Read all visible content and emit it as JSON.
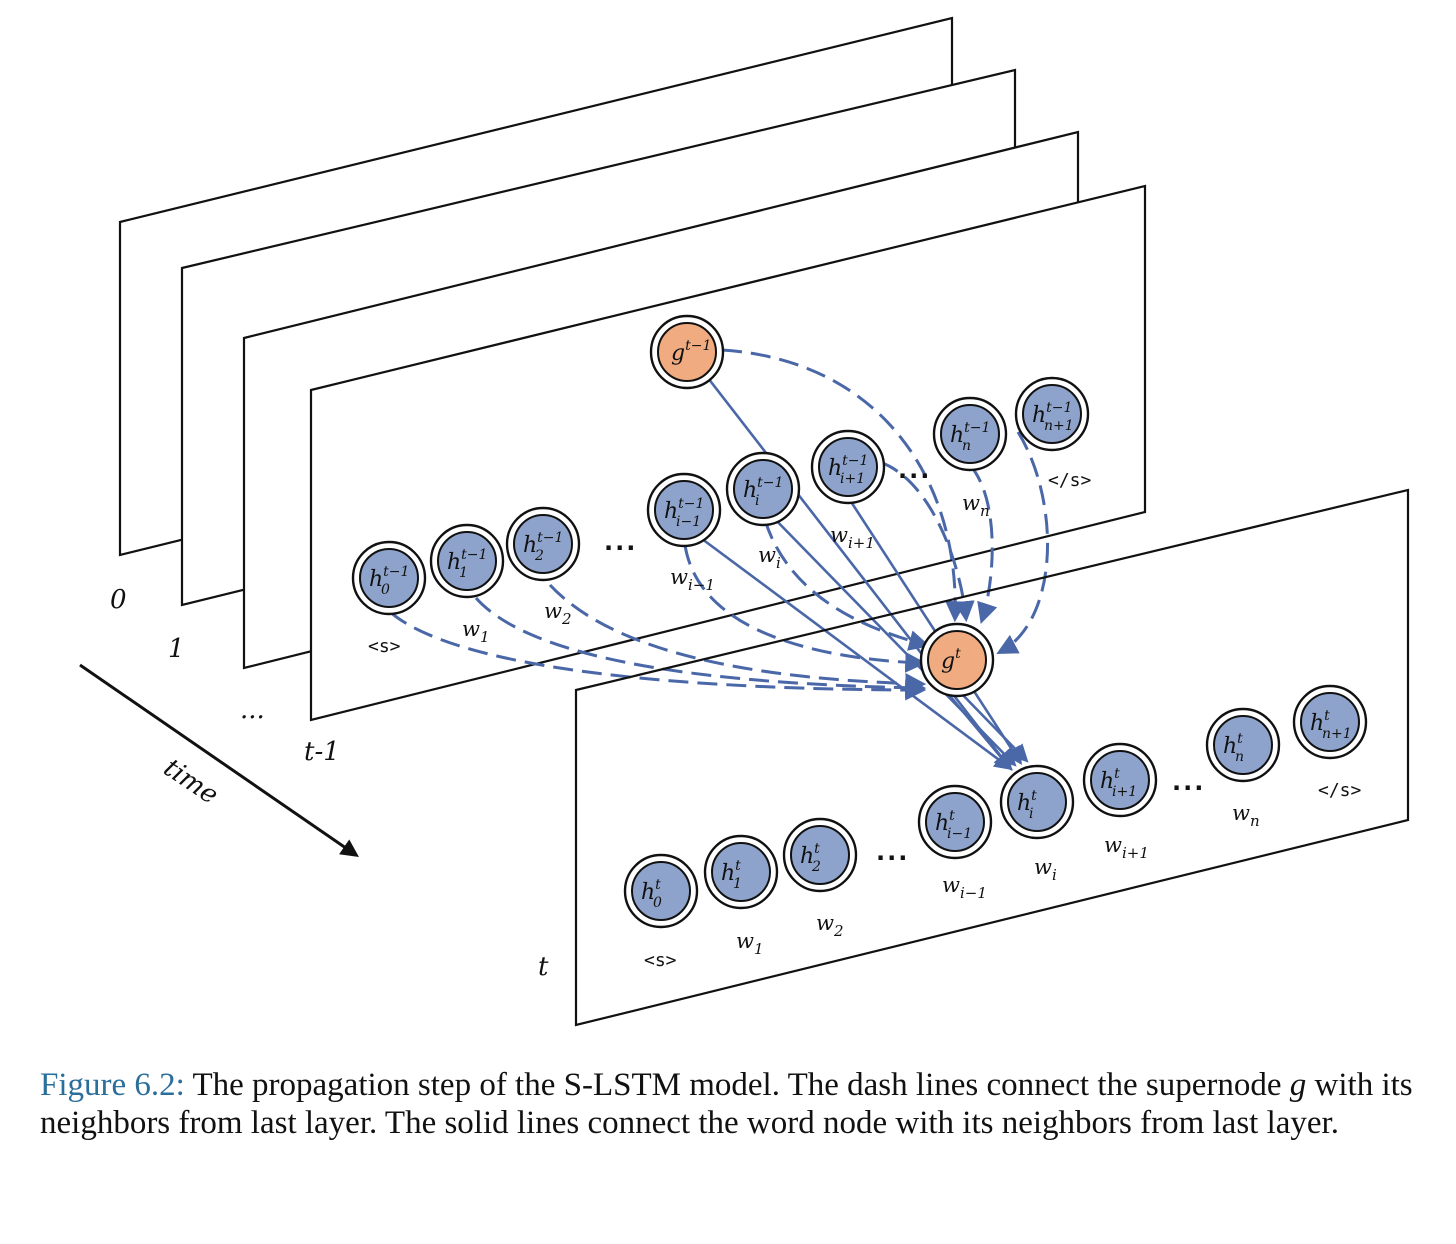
{
  "diagram": {
    "time_axis_label": "time",
    "layer_labels": [
      "0",
      "1",
      "...",
      "t-1",
      "t"
    ],
    "dots": "...",
    "prev_layer": {
      "supernode": {
        "base": "g",
        "sup": "t−1"
      },
      "nodes": [
        {
          "id": "p0",
          "base": "h",
          "sub": "0",
          "sup": "t−1",
          "word": "<s>",
          "word_kind": "tag"
        },
        {
          "id": "p1",
          "base": "h",
          "sub": "1",
          "sup": "t−1",
          "word_base": "w",
          "word_sub": "1"
        },
        {
          "id": "p2",
          "base": "h",
          "sub": "2",
          "sup": "t−1",
          "word_base": "w",
          "word_sub": "2"
        },
        {
          "id": "pim1",
          "base": "h",
          "sub": "i−1",
          "sup": "t−1",
          "word_base": "w",
          "word_sub": "i−1"
        },
        {
          "id": "pi",
          "base": "h",
          "sub": "i",
          "sup": "t−1",
          "word_base": "w",
          "word_sub": "i"
        },
        {
          "id": "pip1",
          "base": "h",
          "sub": "i+1",
          "sup": "t−1",
          "word_base": "w",
          "word_sub": "i+1"
        },
        {
          "id": "pn",
          "base": "h",
          "sub": "n",
          "sup": "t−1",
          "word_base": "w",
          "word_sub": "n"
        },
        {
          "id": "pnp1",
          "base": "h",
          "sub": "n+1",
          "sup": "t−1",
          "word": "</s>",
          "word_kind": "tag"
        }
      ]
    },
    "cur_layer": {
      "supernode": {
        "base": "g",
        "sup": "t"
      },
      "nodes": [
        {
          "id": "c0",
          "base": "h",
          "sub": "0",
          "sup": "t",
          "word": "<s>",
          "word_kind": "tag"
        },
        {
          "id": "c1",
          "base": "h",
          "sub": "1",
          "sup": "t",
          "word_base": "w",
          "word_sub": "1"
        },
        {
          "id": "c2",
          "base": "h",
          "sub": "2",
          "sup": "t",
          "word_base": "w",
          "word_sub": "2"
        },
        {
          "id": "cim1",
          "base": "h",
          "sub": "i−1",
          "sup": "t",
          "word_base": "w",
          "word_sub": "i−1"
        },
        {
          "id": "ci",
          "base": "h",
          "sub": "i",
          "sup": "t",
          "word_base": "w",
          "word_sub": "i"
        },
        {
          "id": "cip1",
          "base": "h",
          "sub": "i+1",
          "sup": "t",
          "word_base": "w",
          "word_sub": "i+1"
        },
        {
          "id": "cn",
          "base": "h",
          "sub": "n",
          "sup": "t",
          "word_base": "w",
          "word_sub": "n"
        },
        {
          "id": "cnp1",
          "base": "h",
          "sub": "n+1",
          "sup": "t",
          "word": "</s>",
          "word_kind": "tag"
        }
      ]
    },
    "colors": {
      "word_node": "#8ea3cb",
      "supernode": "#f0ab80",
      "edge": "#4a67a8"
    },
    "dashed_edges_to_supernode": [
      "g_prev",
      "p0",
      "p1",
      "p2",
      "pim1",
      "pi",
      "pip1",
      "pn",
      "pnp1"
    ],
    "solid_edges_to_word_node": [
      "g_prev",
      "pim1",
      "pi",
      "pip1",
      "g_cur"
    ]
  },
  "caption": {
    "figure_label": "Figure 6.2:",
    "text_before_symbol": " The propagation step of the S-LSTM model. The dash lines connect the supernode ",
    "symbol": "g",
    "text_after_symbol": " with its neighbors from last layer. The solid lines connect the word node with its neighbors from last layer."
  }
}
